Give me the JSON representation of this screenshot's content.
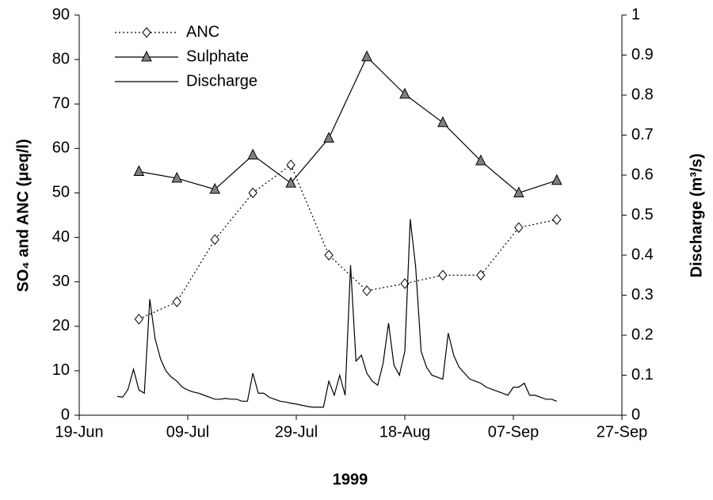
{
  "chart_data": {
    "type": "line",
    "x_label": "1999",
    "y_label": "SO₄ and ANC (μeq/l)",
    "y2_label": "Discharge (m³/s)",
    "xlim": [
      "19-Jun",
      "27-Sep"
    ],
    "xticks": [
      "19-Jun",
      "09-Jul",
      "29-Jul",
      "18-Aug",
      "07-Sep",
      "27-Sep"
    ],
    "ylim": [
      0,
      90
    ],
    "yticks": [
      0,
      10,
      20,
      30,
      40,
      50,
      60,
      70,
      80,
      90
    ],
    "y2lim": [
      0,
      1
    ],
    "y2ticks": [
      0,
      0.1,
      0.2,
      0.3,
      0.4,
      0.5,
      0.6,
      0.7,
      0.8,
      0.9,
      1
    ],
    "grid": false,
    "legend": "upper left",
    "series": [
      {
        "name": "ANC",
        "color": "#000000",
        "line_style": "dotted",
        "marker": "diamond",
        "marker_fill": "#ffffff",
        "x": [
          "30-Jun",
          "07-Jul",
          "14-Jul",
          "21-Jul",
          "28-Jul",
          "04-Aug",
          "11-Aug",
          "18-Aug",
          "25-Aug",
          "01-Sep",
          "08-Sep",
          "15-Sep"
        ],
        "values": [
          21.6,
          25.5,
          39.5,
          50,
          56.3,
          36,
          28,
          29.6,
          31.5,
          31.5,
          42.2,
          44
        ]
      },
      {
        "name": "Sulphate",
        "color": "#000000",
        "line_style": "solid",
        "marker": "triangle",
        "marker_fill": "#808080",
        "x": [
          "30-Jun",
          "07-Jul",
          "14-Jul",
          "21-Jul",
          "28-Jul",
          "04-Aug",
          "11-Aug",
          "18-Aug",
          "25-Aug",
          "01-Sep",
          "08-Sep",
          "15-Sep"
        ],
        "values": [
          54.8,
          53.3,
          50.8,
          58.5,
          52.2,
          62.3,
          80.6,
          72.2,
          65.8,
          57.2,
          50,
          52.8
        ]
      },
      {
        "name": "Discharge",
        "color": "#000000",
        "line_style": "solid",
        "marker": "none",
        "axis": "y2",
        "x": [
          "26-Jun",
          "27-Jun",
          "28-Jun",
          "29-Jun",
          "30-Jun",
          "01-Jul",
          "02-Jul",
          "03-Jul",
          "04-Jul",
          "05-Jul",
          "06-Jul",
          "07-Jul",
          "08-Jul",
          "09-Jul",
          "10-Jul",
          "11-Jul",
          "12-Jul",
          "13-Jul",
          "14-Jul",
          "15-Jul",
          "16-Jul",
          "17-Jul",
          "18-Jul",
          "19-Jul",
          "20-Jul",
          "21-Jul",
          "22-Jul",
          "23-Jul",
          "24-Jul",
          "25-Jul",
          "26-Jul",
          "27-Jul",
          "28-Jul",
          "29-Jul",
          "30-Jul",
          "31-Jul",
          "01-Aug",
          "02-Aug",
          "03-Aug",
          "04-Aug",
          "05-Aug",
          "06-Aug",
          "07-Aug",
          "08-Aug",
          "09-Aug",
          "10-Aug",
          "11-Aug",
          "12-Aug",
          "13-Aug",
          "14-Aug",
          "15-Aug",
          "16-Aug",
          "17-Aug",
          "18-Aug",
          "19-Aug",
          "20-Aug",
          "21-Aug",
          "22-Aug",
          "23-Aug",
          "24-Aug",
          "25-Aug",
          "26-Aug",
          "27-Aug",
          "28-Aug",
          "29-Aug",
          "30-Aug",
          "31-Aug",
          "01-Sep",
          "02-Sep",
          "03-Sep",
          "04-Sep",
          "05-Sep",
          "06-Sep",
          "07-Sep",
          "08-Sep",
          "09-Sep",
          "10-Sep",
          "11-Sep",
          "12-Sep",
          "13-Sep",
          "14-Sep",
          "15-Sep"
        ],
        "values": [
          0.047,
          0.045,
          0.065,
          0.115,
          0.063,
          0.055,
          0.29,
          0.19,
          0.14,
          0.11,
          0.095,
          0.085,
          0.07,
          0.063,
          0.058,
          0.055,
          0.05,
          0.045,
          0.04,
          0.04,
          0.042,
          0.04,
          0.04,
          0.035,
          0.035,
          0.105,
          0.055,
          0.055,
          0.045,
          0.04,
          0.035,
          0.033,
          0.03,
          0.028,
          0.025,
          0.022,
          0.02,
          0.02,
          0.02,
          0.085,
          0.05,
          0.1,
          0.05,
          0.375,
          0.135,
          0.15,
          0.105,
          0.085,
          0.075,
          0.13,
          0.23,
          0.125,
          0.1,
          0.16,
          0.49,
          0.37,
          0.16,
          0.12,
          0.1,
          0.095,
          0.09,
          0.205,
          0.15,
          0.12,
          0.105,
          0.09,
          0.085,
          0.08,
          0.07,
          0.065,
          0.06,
          0.055,
          0.05,
          0.07,
          0.07,
          0.08,
          0.05,
          0.05,
          0.045,
          0.04,
          0.04,
          0.035
        ]
      }
    ]
  }
}
